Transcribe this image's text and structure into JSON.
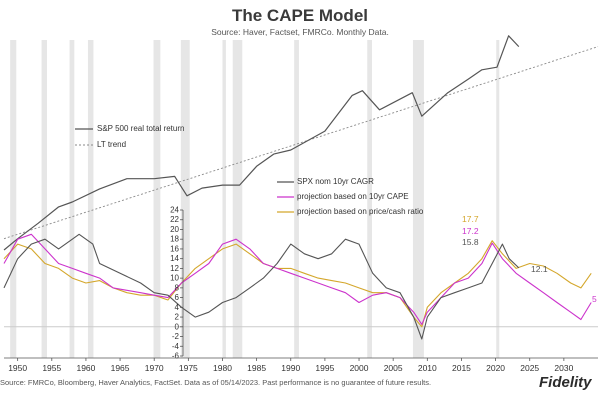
{
  "header": {
    "title": "The CAPE Model",
    "subtitle": "Source: Haver, Factset, FMRCo. Monthly Data."
  },
  "footer": {
    "source": "Source: FMRCo, Bloomberg, Haver Analytics, FactSet. Data as of 05/14/2023. Past performance is no guarantee of future results.",
    "logo": "Fidelity"
  },
  "legend_upper": {
    "item1": "S&P 500 real total return",
    "item2": "LT trend"
  },
  "legend_lower": {
    "item1": "SPX nom 10yr CAGR",
    "item2": "projection based on 10yr CAPE",
    "item3": "projection based on price/cash ratio"
  },
  "colors": {
    "spx": "#555555",
    "cape": "#cc33cc",
    "price_cash": "#d4a72c",
    "trend": "#8a8a8a",
    "recession": "#e6e6e6"
  },
  "chart_data": [
    {
      "type": "line",
      "title": "S&P 500 real total return",
      "scale": "log",
      "series": [
        {
          "name": "S&P 500 real total return",
          "x": [
            1948,
            1950,
            1953,
            1956,
            1958,
            1962,
            1966,
            1970,
            1973,
            1974.8,
            1977,
            1980,
            1982.5,
            1985,
            1987.5,
            1990,
            1995,
            1999,
            2000.5,
            2003,
            2007.8,
            2009.2,
            2013,
            2016,
            2018,
            2020.2,
            2021.9,
            2023.4
          ],
          "y": [
            0.08,
            0.11,
            0.17,
            0.27,
            0.31,
            0.45,
            0.6,
            0.6,
            0.64,
            0.37,
            0.46,
            0.5,
            0.5,
            0.85,
            1.2,
            1.35,
            2.3,
            6.3,
            7.2,
            4.2,
            6.8,
            3.5,
            6.8,
            10,
            13,
            14,
            34,
            25
          ]
        },
        {
          "name": "LT trend",
          "x": [
            1948,
            2035
          ],
          "y": [
            0.11,
            25
          ]
        }
      ],
      "recessions": [
        [
          1948.9,
          1949.8
        ],
        [
          1953.5,
          1954.3
        ],
        [
          1957.6,
          1958.3
        ],
        [
          1960.3,
          1961.1
        ],
        [
          1969.9,
          1970.9
        ],
        [
          1973.9,
          1975.2
        ],
        [
          1980.0,
          1980.5
        ],
        [
          1981.5,
          1982.9
        ],
        [
          1990.5,
          1991.2
        ],
        [
          2001.2,
          2001.9
        ],
        [
          2007.9,
          2009.5
        ],
        [
          2020.1,
          2020.4
        ]
      ],
      "xlim": [
        1948,
        2035
      ]
    },
    {
      "type": "line",
      "title": "",
      "ylim": [
        -6,
        24
      ],
      "yticks": [
        -6,
        -4,
        -2,
        0,
        2,
        4,
        6,
        8,
        10,
        12,
        14,
        16,
        18,
        20,
        22,
        24
      ],
      "xticks": [
        1950,
        1955,
        1960,
        1965,
        1970,
        1975,
        1980,
        1985,
        1990,
        1995,
        2000,
        2005,
        2010,
        2015,
        2020,
        2025,
        2030
      ],
      "xlim": [
        1948,
        2035
      ],
      "series": [
        {
          "name": "SPX nom 10yr CAGR",
          "x": [
            1948,
            1950,
            1952,
            1954,
            1956,
            1958,
            1959,
            1961,
            1962,
            1965,
            1968,
            1970,
            1972,
            1974,
            1976,
            1978,
            1980,
            1982,
            1984,
            1986,
            1988,
            1990,
            1992,
            1994,
            1996,
            1998,
            2000,
            2002,
            2004,
            2006,
            2008,
            2009.2,
            2010,
            2012,
            2014,
            2016,
            2018,
            2019.5,
            2021,
            2022,
            2023.4
          ],
          "y": [
            8,
            14,
            17,
            18,
            16,
            18,
            19,
            17,
            13,
            11,
            9,
            7,
            6.5,
            4,
            2,
            3,
            5,
            6,
            8,
            10,
            13,
            17,
            15,
            14,
            15,
            18,
            17,
            11,
            8,
            7,
            2,
            -2.5,
            2,
            6,
            7,
            8,
            9,
            13,
            17,
            14,
            12.1
          ]
        },
        {
          "name": "projection based on 10yr CAPE",
          "x": [
            1948,
            1950,
            1952,
            1954,
            1956,
            1958,
            1960,
            1962,
            1964,
            1966,
            1968,
            1970,
            1972,
            1974,
            1976,
            1978,
            1980,
            1982,
            1984,
            1986,
            1988,
            1990,
            1992,
            1994,
            1996,
            1998,
            2000,
            2002,
            2004,
            2006,
            2008,
            2009.2,
            2010,
            2012,
            2014,
            2016,
            2018,
            2019.5,
            2021,
            2023,
            2025,
            2027,
            2029,
            2031,
            2032.5,
            2034
          ],
          "y": [
            13,
            18,
            19,
            16,
            13,
            12,
            11,
            10,
            8,
            7.5,
            7,
            6.5,
            6,
            9,
            11,
            13,
            17,
            18,
            16,
            13,
            12,
            11,
            10,
            9,
            8,
            7,
            5,
            6.5,
            7,
            6,
            3,
            0.5,
            3,
            6,
            9,
            10,
            13,
            17.2,
            14,
            11,
            9,
            7,
            5,
            3,
            1.5,
            5
          ]
        },
        {
          "name": "projection based on price/cash ratio",
          "x": [
            1948,
            1950,
            1952,
            1954,
            1956,
            1958,
            1960,
            1962,
            1964,
            1966,
            1968,
            1970,
            1972,
            1974,
            1976,
            1978,
            1980,
            1982,
            1984,
            1986,
            1988,
            1990,
            1992,
            1994,
            1996,
            1998,
            2000,
            2002,
            2004,
            2006,
            2008,
            2009.2,
            2010,
            2012,
            2014,
            2016,
            2018,
            2019.5,
            2021,
            2023,
            2025,
            2027,
            2029,
            2031,
            2032.5,
            2034
          ],
          "y": [
            14,
            17,
            16,
            13,
            12,
            10,
            9,
            9.5,
            8,
            7,
            6.5,
            6.5,
            5.5,
            9,
            12,
            14,
            16,
            17,
            15,
            13,
            12,
            12,
            11,
            10,
            9.5,
            9,
            8,
            7,
            7,
            6,
            2,
            0,
            4,
            7,
            9,
            11,
            14,
            17.7,
            15,
            12,
            13,
            12.5,
            11,
            9,
            8,
            11
          ]
        }
      ],
      "annotations": [
        "17.7",
        "17.2",
        "15.8",
        "12.1",
        "5"
      ]
    }
  ]
}
